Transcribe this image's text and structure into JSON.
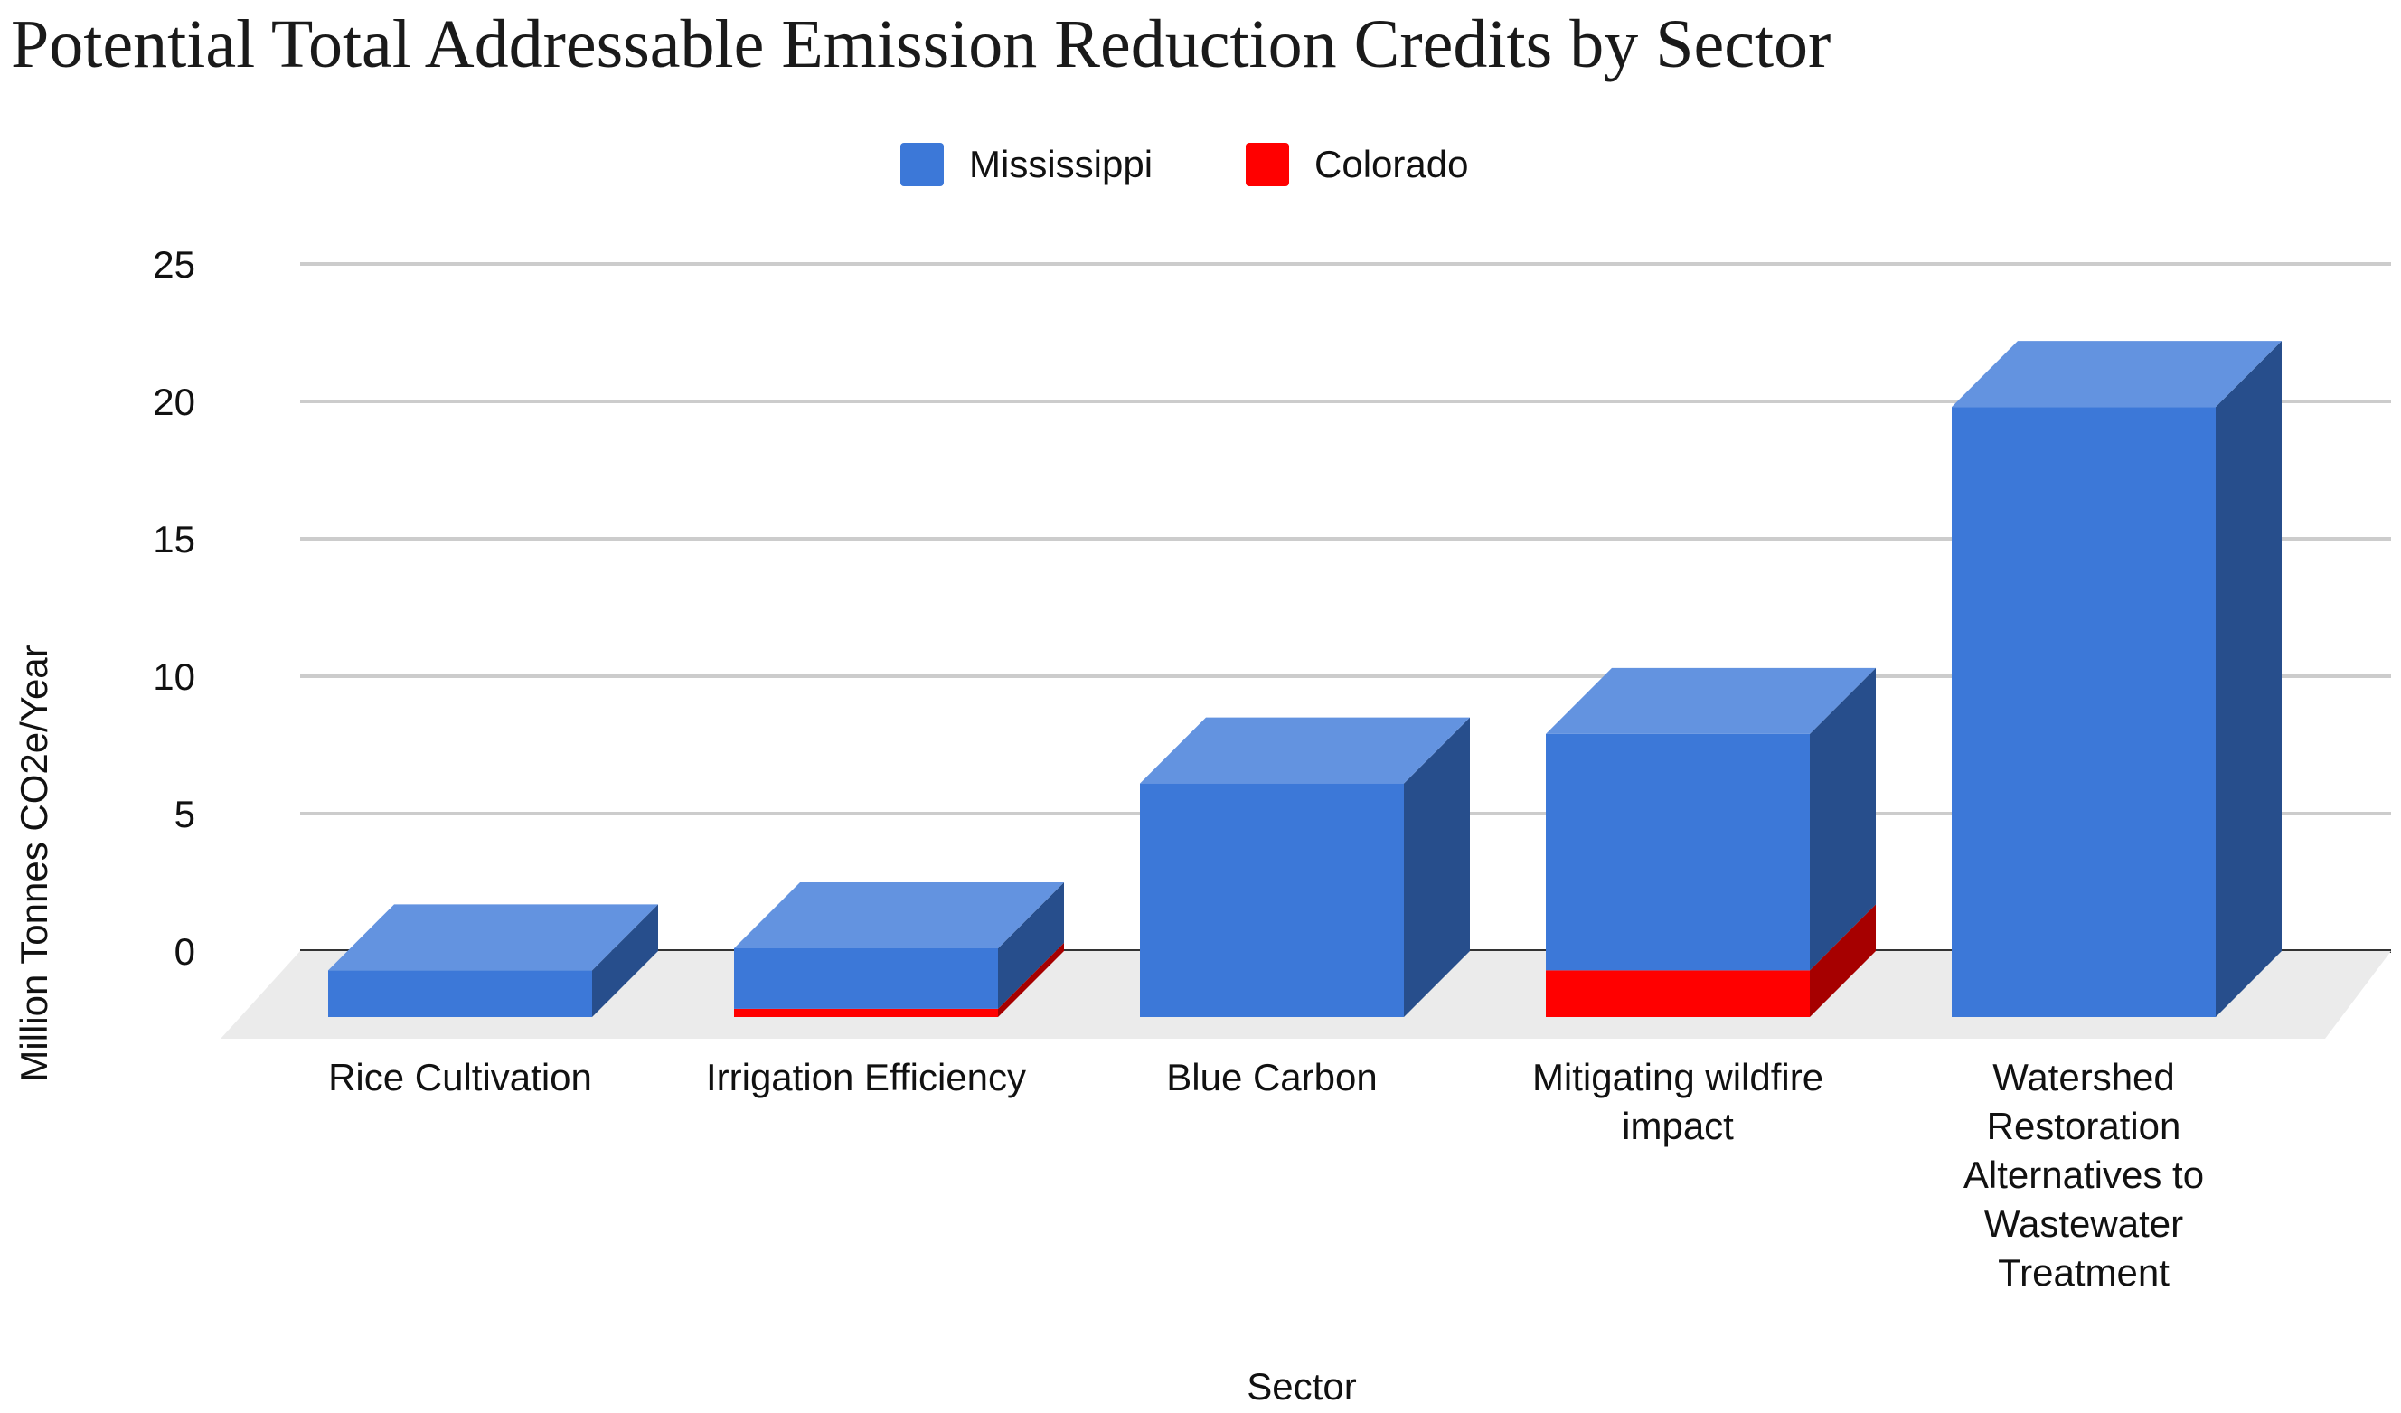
{
  "chart_data": {
    "type": "bar",
    "title": "Potential Total Addressable Emission Reduction Credits by Sector",
    "xlabel": "Sector",
    "ylabel": "Million Tonnes CO2e/Year",
    "categories": [
      "Rice Cultivation",
      "Irrigation Efficiency",
      "Blue Carbon",
      "Mitigating wildfire impact",
      "Watershed Restoration Alternatives to Wastewater Treatment"
    ],
    "series": [
      {
        "name": "Colorado",
        "color": "#ff0000",
        "values": [
          0,
          0.3,
          0,
          1.7,
          0
        ]
      },
      {
        "name": "Mississippi",
        "color": "#3c78d8",
        "values": [
          1.7,
          2.2,
          8.5,
          8.6,
          22.2
        ]
      }
    ],
    "stacked": true,
    "three_d": true,
    "ylim": [
      0,
      25
    ],
    "yticks": [
      "0",
      "5",
      "10",
      "15",
      "20",
      "25"
    ],
    "grid": true,
    "legend_position": "top"
  }
}
